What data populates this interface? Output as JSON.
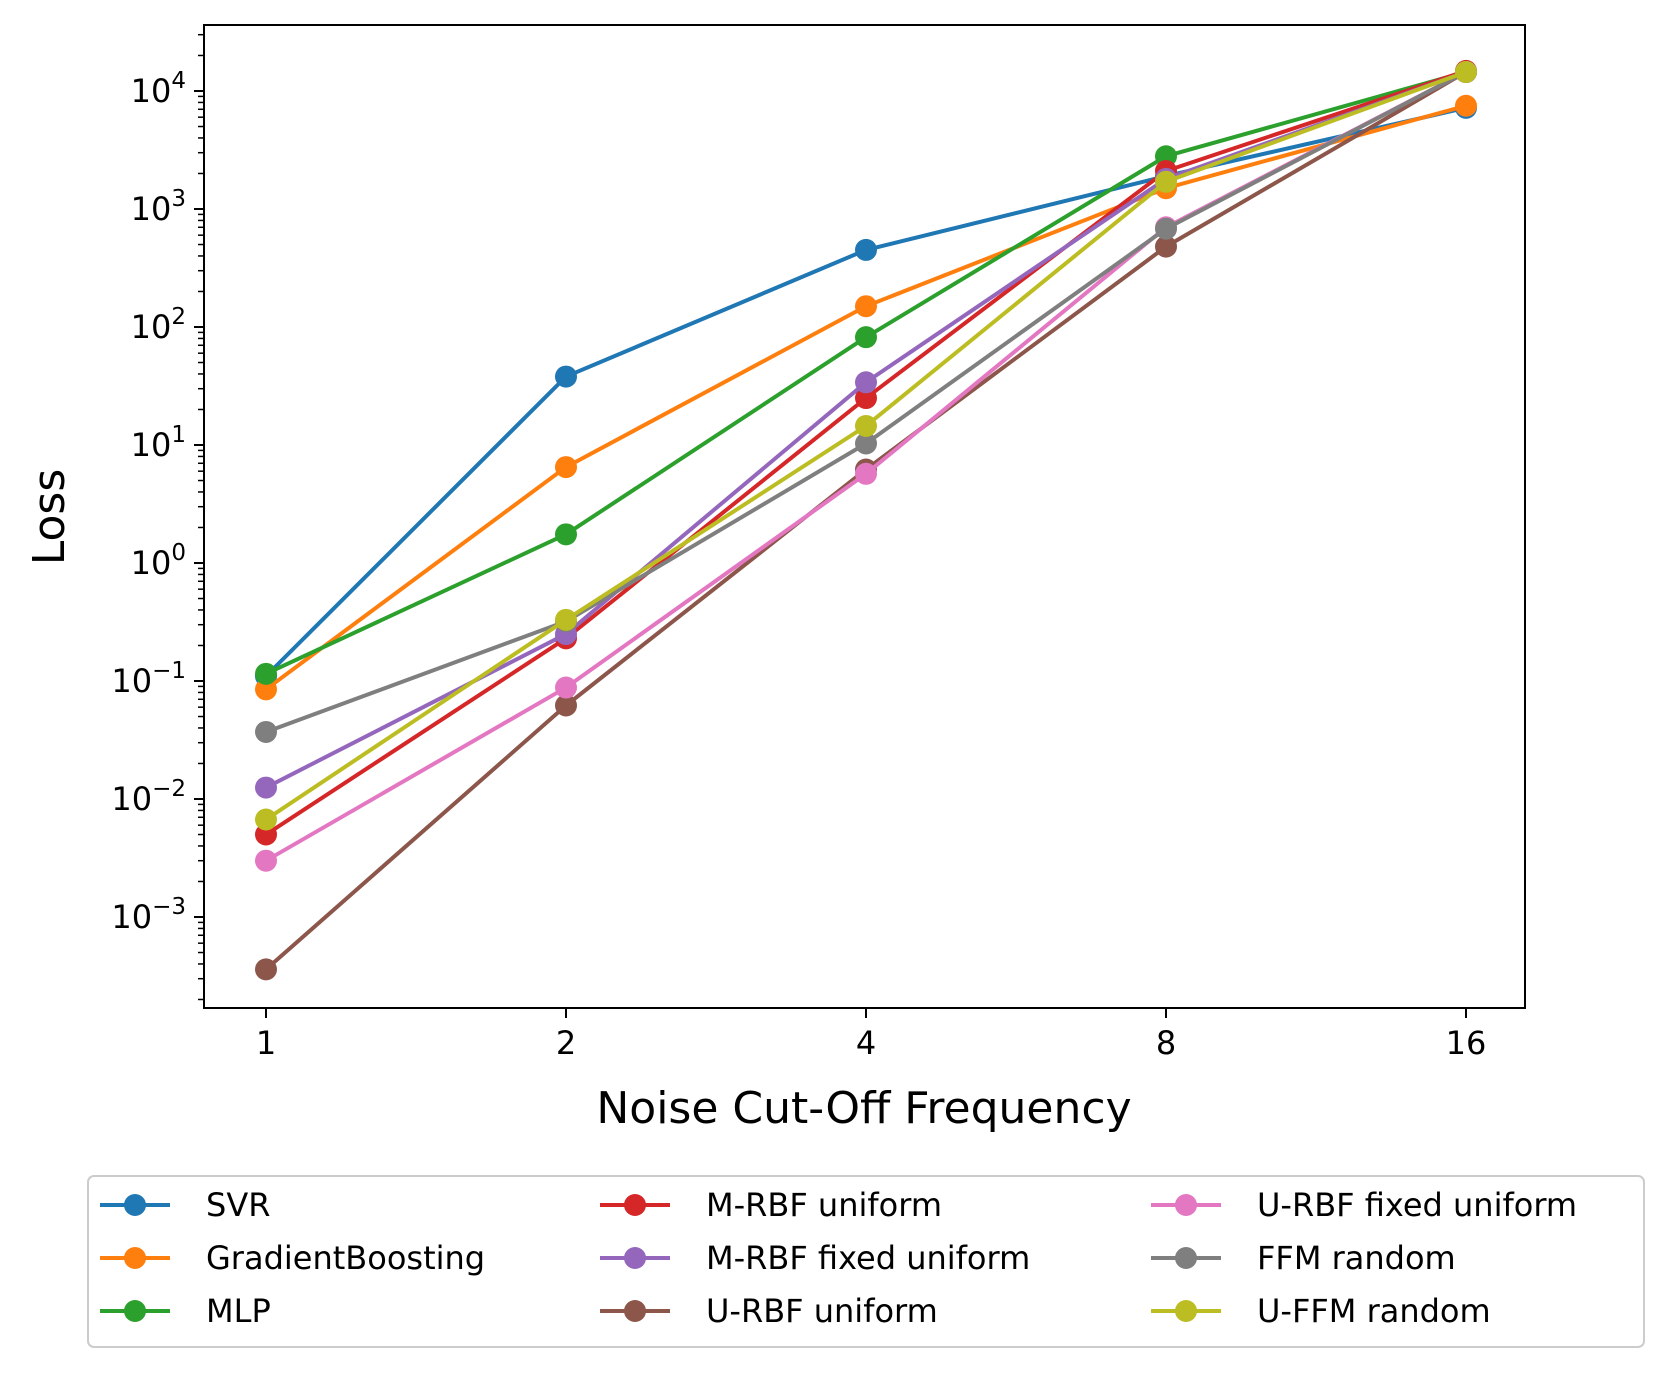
{
  "chart_data": {
    "type": "line",
    "xlabel": "Noise Cut-Off Frequency",
    "ylabel": "Loss",
    "yscale": "log",
    "xscale": "log2",
    "x": [
      1,
      2,
      4,
      8,
      16
    ],
    "x_tick_labels": [
      "1",
      "2",
      "4",
      "8",
      "16"
    ],
    "y_ticks": [
      {
        "value": 0.001,
        "base": "10",
        "exp": "−3"
      },
      {
        "value": 0.01,
        "base": "10",
        "exp": "−2"
      },
      {
        "value": 0.1,
        "base": "10",
        "exp": "−1"
      },
      {
        "value": 1,
        "base": "10",
        "exp": "0"
      },
      {
        "value": 10,
        "base": "10",
        "exp": "1"
      },
      {
        "value": 100,
        "base": "10",
        "exp": "2"
      },
      {
        "value": 1000,
        "base": "10",
        "exp": "3"
      },
      {
        "value": 10000,
        "base": "10",
        "exp": "4"
      }
    ],
    "ylim": [
      0.00014,
      35000
    ],
    "grid": false,
    "legend_placement": "bottom",
    "series": [
      {
        "name": "SVR",
        "color": "#1f77b4",
        "values": [
          0.11,
          38,
          450,
          1900,
          7200
        ]
      },
      {
        "name": "GradientBoosting",
        "color": "#ff7f0e",
        "values": [
          0.085,
          6.5,
          150,
          1500,
          7500
        ]
      },
      {
        "name": "MLP",
        "color": "#2ca02c",
        "values": [
          0.115,
          1.75,
          82,
          2800,
          14500
        ]
      },
      {
        "name": "M-RBF uniform",
        "color": "#d62728",
        "values": [
          0.005,
          0.23,
          25,
          2100,
          14800
        ]
      },
      {
        "name": "M-RBF fixed uniform",
        "color": "#9467bd",
        "values": [
          0.0125,
          0.25,
          34,
          1800,
          14500
        ]
      },
      {
        "name": "U-RBF uniform",
        "color": "#8c564b",
        "values": [
          0.00036,
          0.062,
          6.2,
          480,
          14500
        ]
      },
      {
        "name": "U-RBF fixed uniform",
        "color": "#e377c2",
        "values": [
          0.003,
          0.088,
          5.7,
          700,
          14500
        ]
      },
      {
        "name": "FFM random",
        "color": "#7f7f7f",
        "values": [
          0.037,
          0.32,
          10.3,
          680,
          14500
        ]
      },
      {
        "name": "U-FFM random",
        "color": "#bcbd22",
        "values": [
          0.0067,
          0.33,
          14.5,
          1700,
          14500
        ]
      }
    ]
  }
}
